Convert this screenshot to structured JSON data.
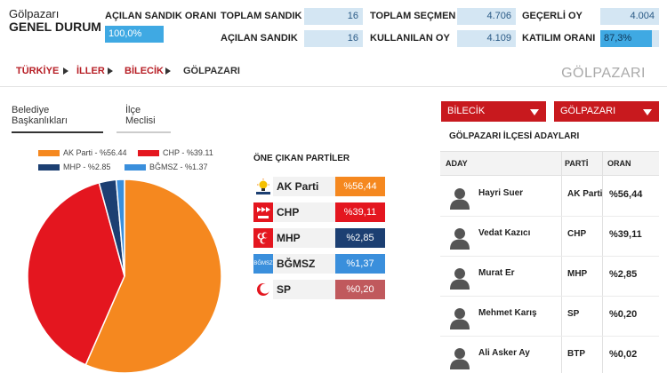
{
  "header": {
    "title_line1": "Gölpazarı",
    "title_line2": "GENEL DURUM"
  },
  "stats": {
    "ballot_opened_label": "AÇILAN SANDIK ORANI",
    "ballot_opened_value": "100,0%",
    "total_ballots_label": "TOPLAM SANDIK",
    "total_ballots_value": "16",
    "opened_ballots_label": "AÇILAN SANDIK",
    "opened_ballots_value": "16",
    "total_voters_label": "TOPLAM SEÇMEN",
    "total_voters_value": "4.706",
    "votes_cast_label": "KULLANILAN OY",
    "votes_cast_value": "4.109",
    "valid_votes_label": "GEÇERLİ OY",
    "valid_votes_value": "4.004",
    "turnout_label": "KATILIM ORANI",
    "turnout_value": "87,3%",
    "turnout_fraction": 0.873
  },
  "breadcrumb": {
    "items": [
      "TÜRKİYE",
      "İLLER",
      "BİLECİK",
      "GÖLPAZARI"
    ],
    "district_title": "GÖLPAZARI"
  },
  "tabs": [
    "Belediye Başkanlıkları",
    "İlçe Meclisi"
  ],
  "chart_data": {
    "type": "pie",
    "slices": [
      {
        "label": "AK Parti - %56.44",
        "value": 56.44,
        "color": "#f5881f"
      },
      {
        "label": "CHP - %39.11",
        "value": 39.11,
        "color": "#e4161f"
      },
      {
        "label": "MHP - %2.85",
        "value": 2.85,
        "color": "#1c3f72"
      },
      {
        "label": "BĞMSZ - %1.37",
        "value": 1.37,
        "color": "#3a8fdc"
      }
    ]
  },
  "parties": {
    "title": "ÖNE ÇIKAN PARTİLER",
    "items": [
      {
        "name": "AK Parti",
        "pct": "%56,44",
        "color": "#f5881f",
        "logo_icon": "bulb-icon"
      },
      {
        "name": "CHP",
        "pct": "%39,11",
        "color": "#e4161f",
        "logo_icon": "six-arrows-icon"
      },
      {
        "name": "MHP",
        "pct": "%2,85",
        "color": "#1c3f72",
        "logo_icon": "crescents-icon"
      },
      {
        "name": "BĞMSZ",
        "pct": "%1,37",
        "color": "#3a8fdc",
        "logo_icon": "independent-icon",
        "logo_text": "BĞMSZ"
      },
      {
        "name": "SP",
        "pct": "%0,20",
        "color": "#c0595d",
        "logo_icon": "crescent-icon"
      }
    ]
  },
  "dropdowns": {
    "province": "BİLECİK",
    "district": "GÖLPAZARI"
  },
  "candidates": {
    "title": "GÖLPAZARI İLÇESİ ADAYLARI",
    "col_candidate": "ADAY",
    "col_party": "PARTİ",
    "col_rate": "ORAN",
    "rows": [
      {
        "name": "Hayri Suer",
        "party": "AK Parti",
        "pct": "%56,44"
      },
      {
        "name": "Vedat Kazıcı",
        "party": "CHP",
        "pct": "%39,11"
      },
      {
        "name": "Murat Er",
        "party": "MHP",
        "pct": "%2,85"
      },
      {
        "name": "Mehmet Karış",
        "party": "SP",
        "pct": "%0,20"
      },
      {
        "name": "Ali Asker Ay",
        "party": "BTP",
        "pct": "%0,02"
      }
    ]
  }
}
